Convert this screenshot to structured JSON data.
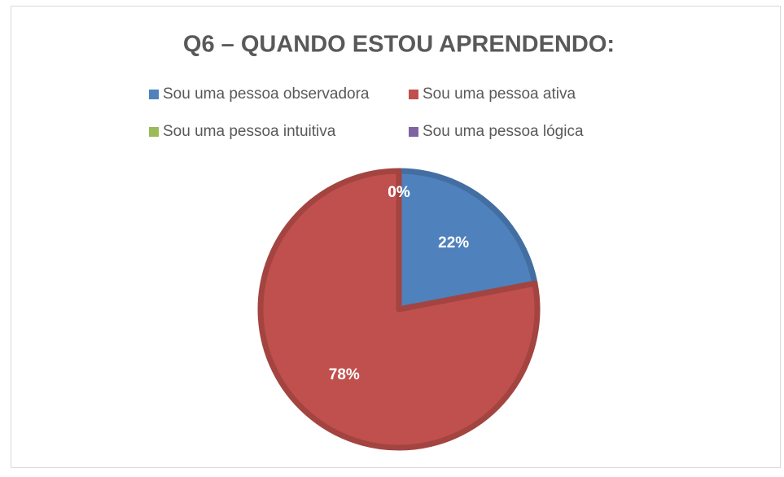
{
  "chart_data": {
    "type": "pie",
    "title": "Q6 – QUANDO ESTOU APRENDENDO:",
    "categories": [
      "Sou uma pessoa observadora",
      "Sou uma pessoa ativa",
      "Sou uma pessoa intuitiva",
      "Sou uma pessoa lógica"
    ],
    "values": [
      22,
      78,
      0,
      0
    ],
    "value_labels": [
      "22%",
      "78%",
      "0%",
      "0%"
    ],
    "colors": [
      "#4f81bd",
      "#c0504d",
      "#9bbb59",
      "#8064a2"
    ],
    "legend": "top"
  }
}
